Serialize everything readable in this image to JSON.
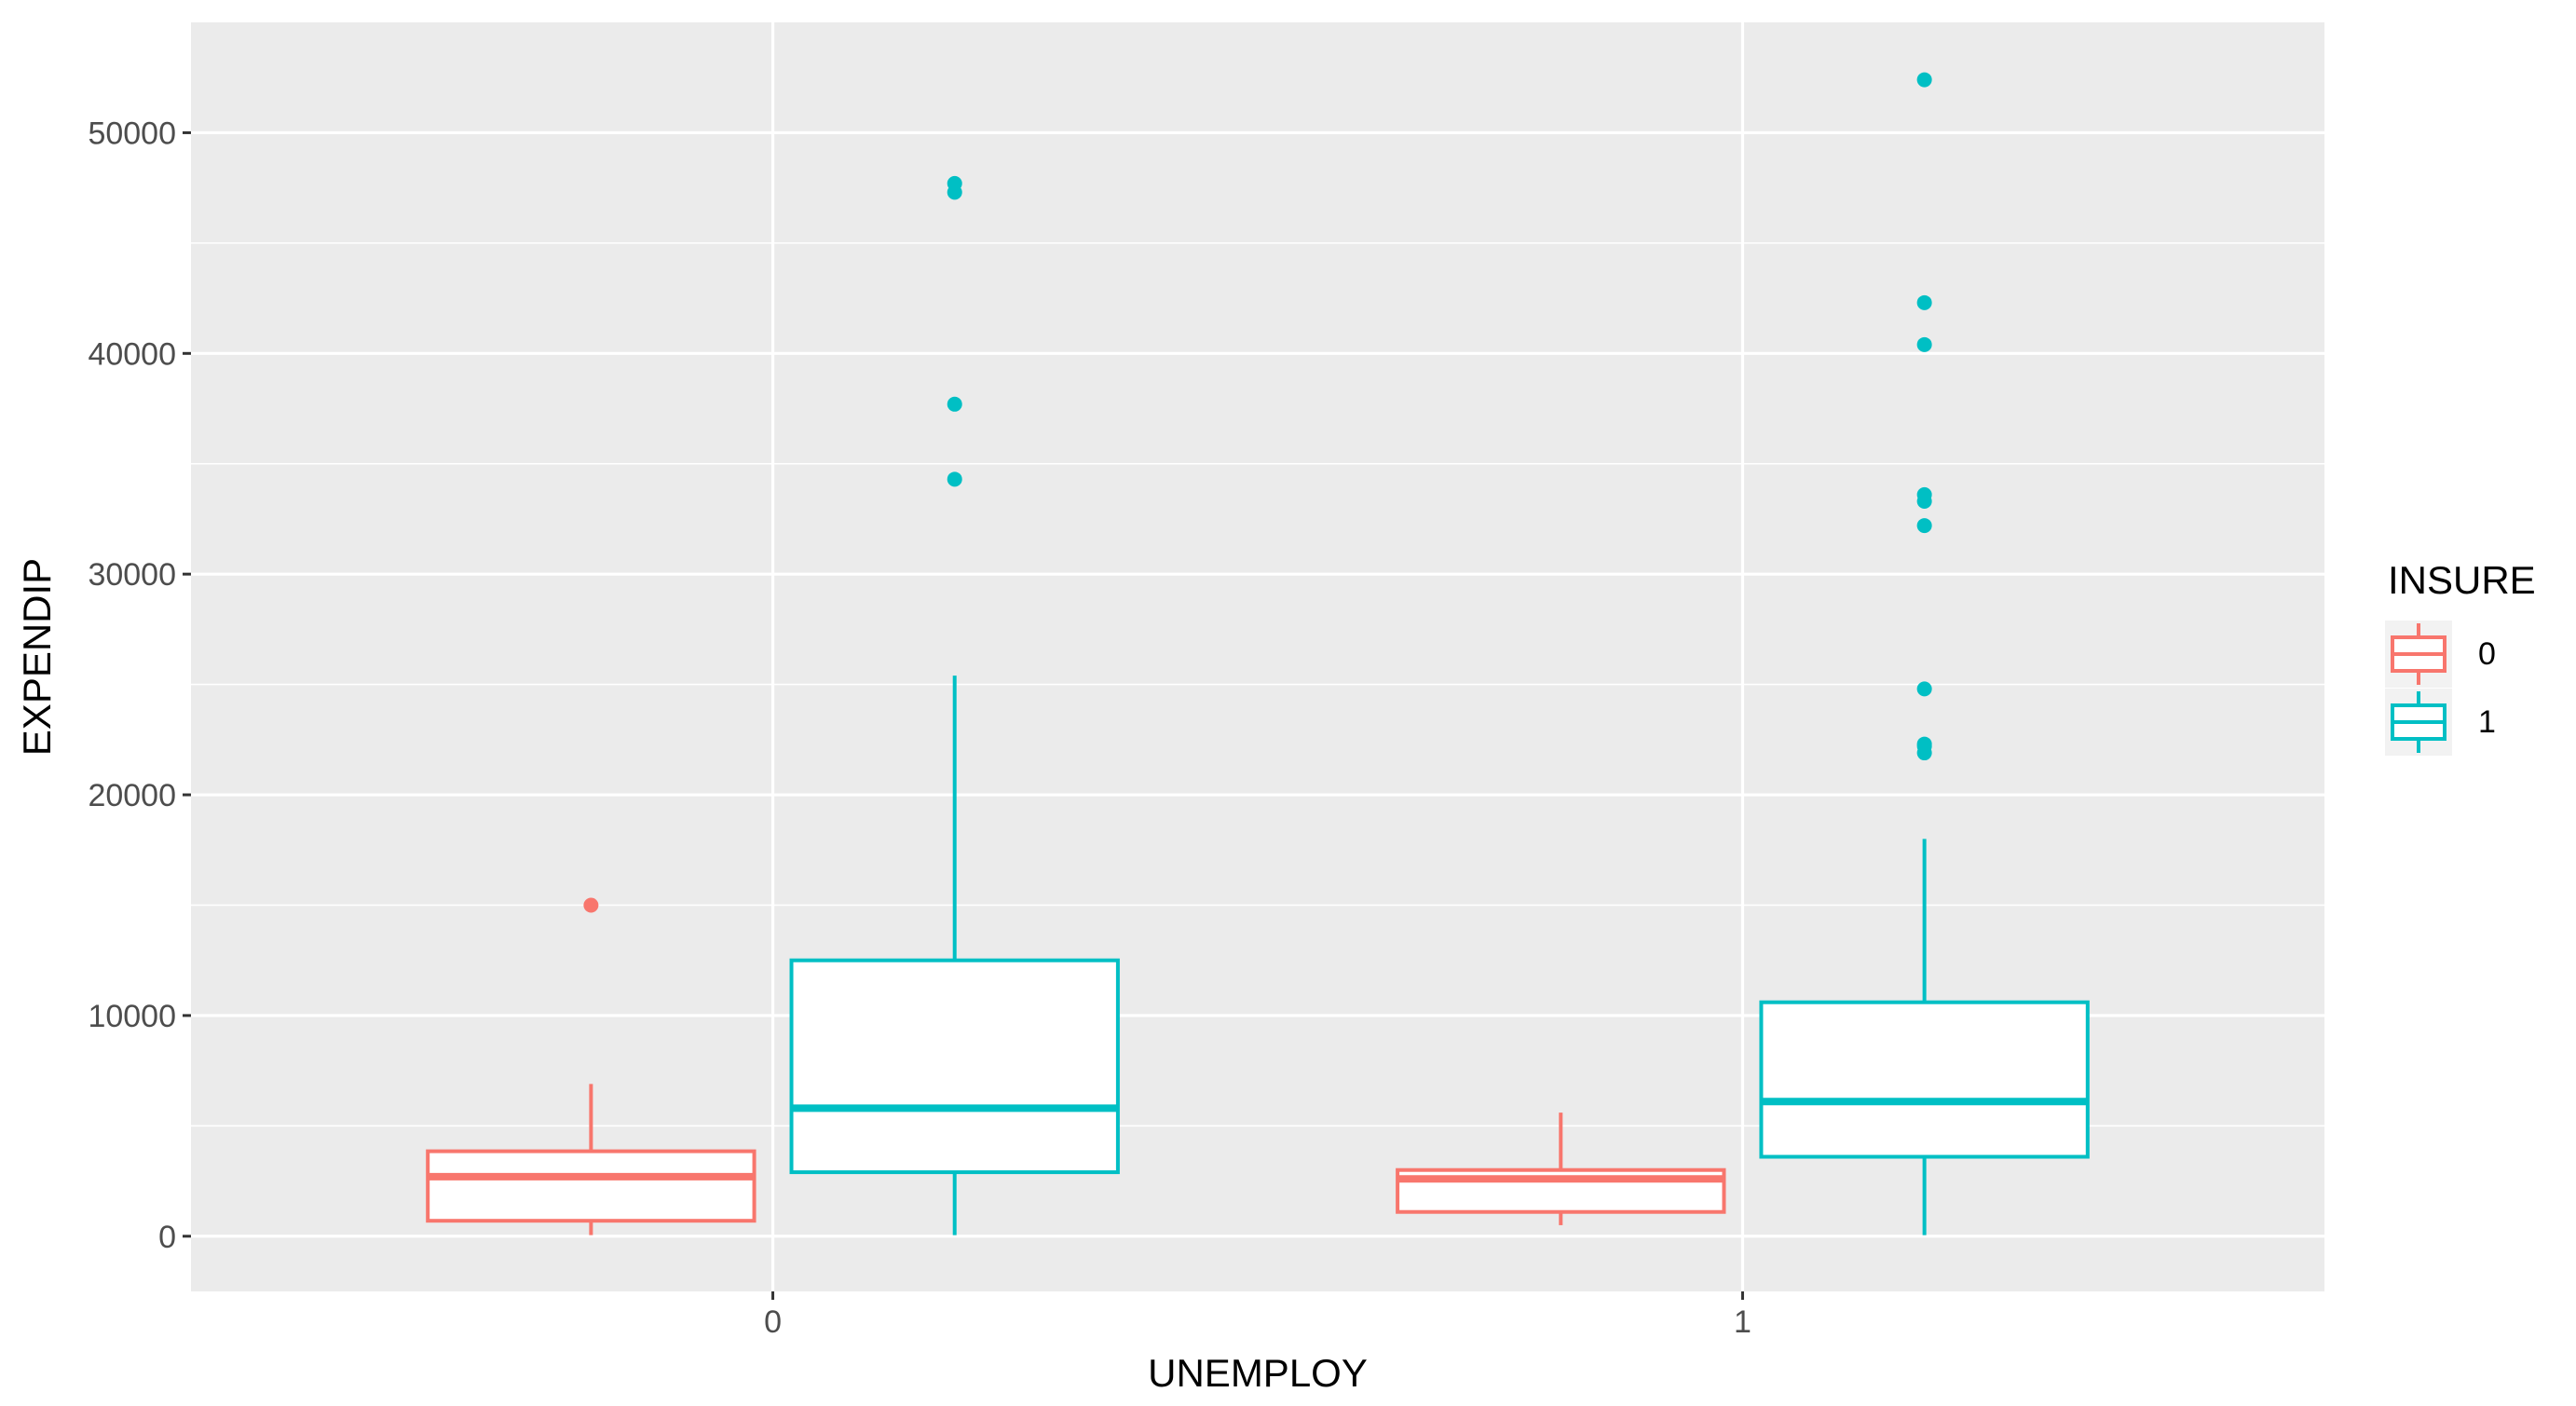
{
  "chart_data": {
    "type": "box",
    "xlabel": "UNEMPLOY",
    "ylabel": "EXPENDIP",
    "categories": [
      "0",
      "1"
    ],
    "ylim": [
      -2500,
      55000
    ],
    "yticks": [
      0,
      10000,
      20000,
      30000,
      40000,
      50000
    ],
    "grid": true,
    "legend": {
      "title": "INSURE",
      "position": "right",
      "labels": [
        "0",
        "1"
      ]
    },
    "series": [
      {
        "name": "0",
        "color": "#F8766D",
        "boxes": [
          {
            "category": "0",
            "min": 50,
            "q1": 700,
            "median": 2700,
            "q3": 3850,
            "max": 6900,
            "outliers": [
              15000
            ]
          },
          {
            "category": "1",
            "min": 500,
            "q1": 1100,
            "median": 2600,
            "q3": 3000,
            "max": 5600,
            "outliers": []
          }
        ]
      },
      {
        "name": "1",
        "color": "#00BFC4",
        "boxes": [
          {
            "category": "0",
            "min": 50,
            "q1": 2900,
            "median": 5800,
            "q3": 12500,
            "max": 25400,
            "outliers": [
              34300,
              37700,
              47300,
              47700
            ]
          },
          {
            "category": "1",
            "min": 50,
            "q1": 3600,
            "median": 6100,
            "q3": 10600,
            "max": 18000,
            "outliers": [
              21900,
              22200,
              22300,
              24800,
              32200,
              33300,
              33600,
              40400,
              42300,
              52400
            ]
          }
        ]
      }
    ]
  }
}
